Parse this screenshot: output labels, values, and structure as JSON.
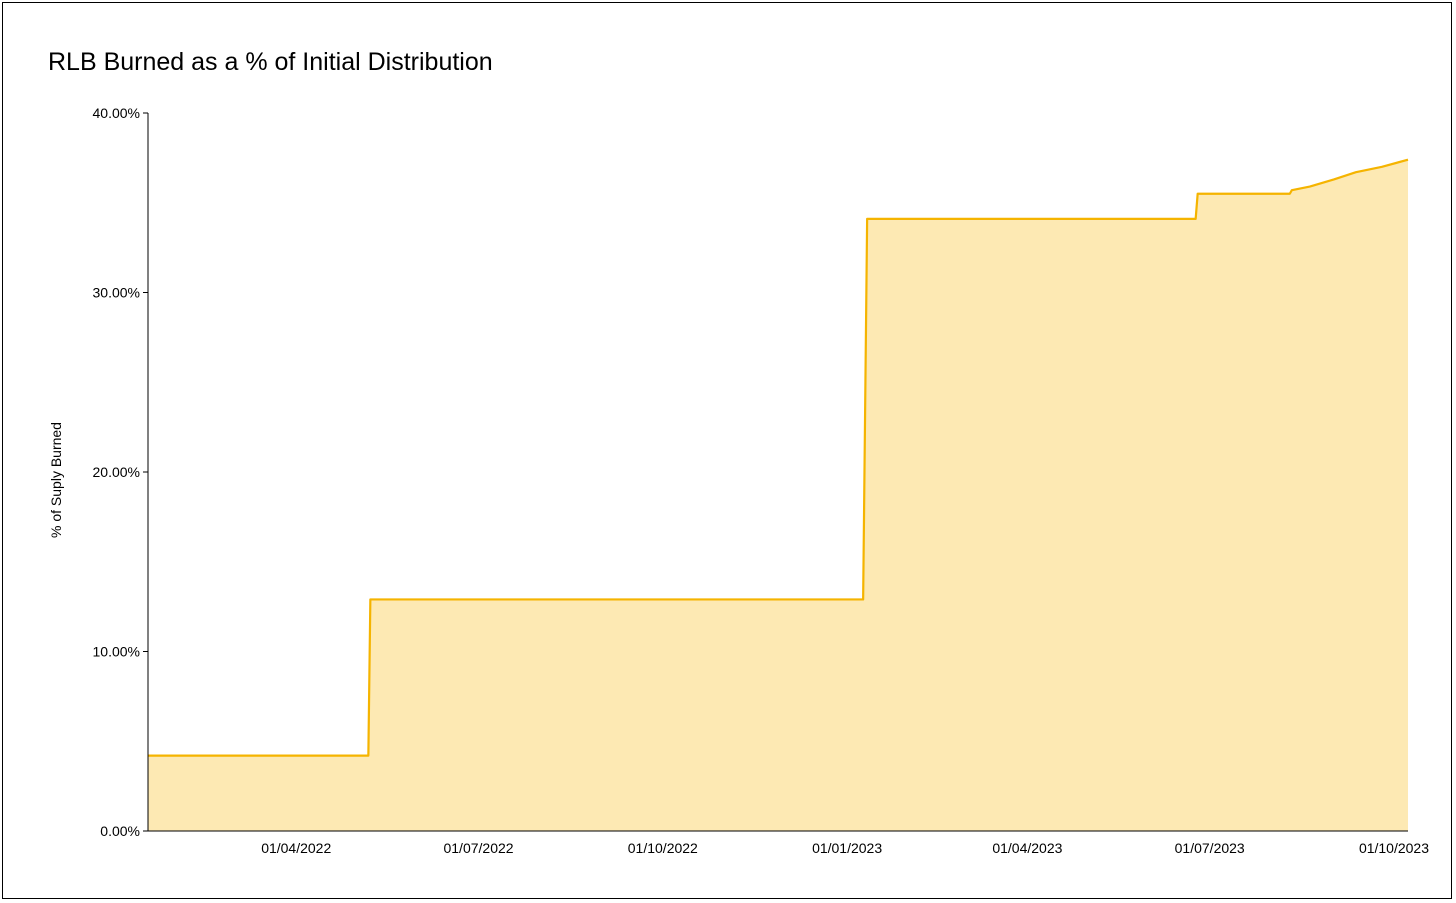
{
  "chart_data": {
    "type": "area",
    "title": "RLB Burned as a % of Initial Distribution",
    "xlabel": "",
    "ylabel": "% of Suply Burned",
    "x_axis": {
      "type": "date",
      "range": [
        "2022-01-17",
        "2023-10-08"
      ],
      "ticks": [
        {
          "date": "2022-04-01",
          "label": "01/04/2022"
        },
        {
          "date": "2022-07-01",
          "label": "01/07/2022"
        },
        {
          "date": "2022-10-01",
          "label": "01/10/2022"
        },
        {
          "date": "2023-01-01",
          "label": "01/01/2023"
        },
        {
          "date": "2023-04-01",
          "label": "01/04/2023"
        },
        {
          "date": "2023-07-01",
          "label": "01/07/2023"
        },
        {
          "date": "2023-10-01",
          "label": "01/10/2023"
        }
      ]
    },
    "y_axis": {
      "range": [
        0,
        40
      ],
      "ticks": [
        {
          "value": 0,
          "label": "0.00%"
        },
        {
          "value": 10,
          "label": "10.00%"
        },
        {
          "value": 20,
          "label": "20.00%"
        },
        {
          "value": 30,
          "label": "30.00%"
        },
        {
          "value": 40,
          "label": "40.00%"
        }
      ]
    },
    "grid": false,
    "legend": "none",
    "series": [
      {
        "color": "#F5B400",
        "fill": "#FDE9B3",
        "points": [
          {
            "x": "2022-01-17",
            "y": 4.2
          },
          {
            "x": "2022-05-07",
            "y": 4.2
          },
          {
            "x": "2022-05-08",
            "y": 12.9
          },
          {
            "x": "2023-01-09",
            "y": 12.9
          },
          {
            "x": "2023-01-11",
            "y": 34.1
          },
          {
            "x": "2023-06-24",
            "y": 34.1
          },
          {
            "x": "2023-06-25",
            "y": 35.5
          },
          {
            "x": "2023-08-10",
            "y": 35.5
          },
          {
            "x": "2023-08-11",
            "y": 35.7
          },
          {
            "x": "2023-08-20",
            "y": 35.9
          },
          {
            "x": "2023-09-01",
            "y": 36.3
          },
          {
            "x": "2023-09-12",
            "y": 36.7
          },
          {
            "x": "2023-09-25",
            "y": 37.0
          },
          {
            "x": "2023-10-08",
            "y": 37.4
          }
        ]
      }
    ]
  }
}
